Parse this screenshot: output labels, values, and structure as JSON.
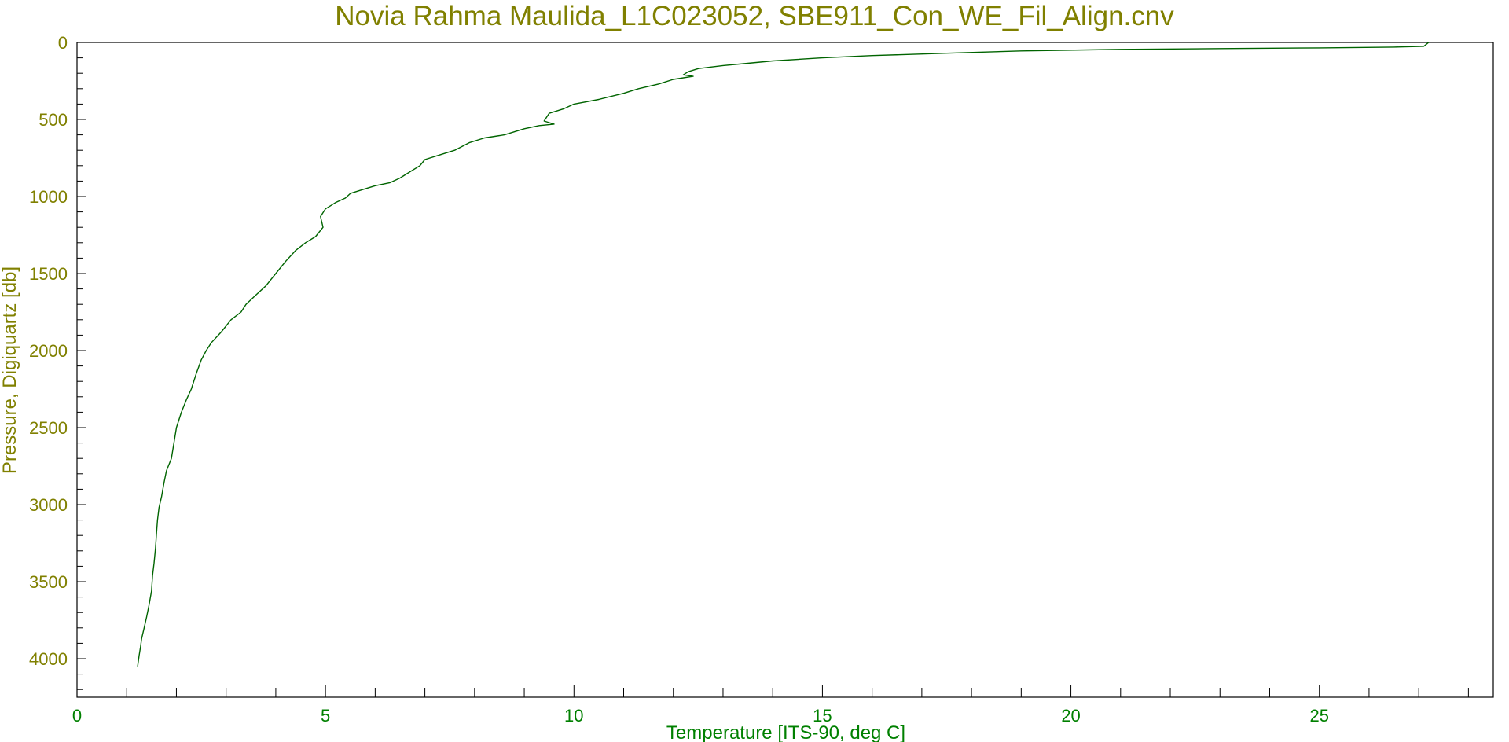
{
  "chart_data": {
    "type": "line",
    "title": "Novia Rahma Maulida_L1C023052, SBE911_Con_WE_Fil_Align.cnv",
    "xlabel": "Temperature [ITS-90, deg C]",
    "ylabel": "Pressure, Digiquartz [db]",
    "xlim": [
      0,
      28.5
    ],
    "ylim": [
      4250,
      0
    ],
    "y_inverted": true,
    "x_ticks": [
      0,
      5,
      10,
      15,
      20,
      25
    ],
    "x_tick_labels": [
      "0",
      "5",
      "10",
      "15",
      "20",
      "25"
    ],
    "y_ticks": [
      0,
      500,
      1000,
      1500,
      2000,
      2500,
      3000,
      3500,
      4000
    ],
    "y_tick_labels": [
      "0",
      "500",
      "1000",
      "1500",
      "2000",
      "2500",
      "3000",
      "3500",
      "4000"
    ],
    "grid": false,
    "colors": {
      "title": "#808000",
      "y_axis": "#808000",
      "x_axis": "#008000",
      "series": "#006400",
      "frame": "#000000"
    },
    "series": [
      {
        "x": [
          27.2,
          27.1,
          26.5,
          25.0,
          23.0,
          21.0,
          19.0,
          17.5,
          16.0,
          15.0,
          14.0,
          13.5,
          13.0,
          12.5,
          12.3,
          12.2,
          12.4,
          12.0,
          11.7,
          11.3,
          11.0,
          10.5,
          10.0,
          9.8,
          9.5,
          9.4,
          9.6,
          9.3,
          9.0,
          8.6,
          8.2,
          7.9,
          7.6,
          7.3,
          7.0,
          6.9,
          6.7,
          6.5,
          6.3,
          6.0,
          5.8,
          5.5,
          5.4,
          5.2,
          5.1,
          5.0,
          4.9,
          4.95,
          4.8,
          4.6,
          4.4,
          4.2,
          4.0,
          3.9,
          3.8,
          3.6,
          3.4,
          3.3,
          3.1,
          2.9,
          2.7,
          2.6,
          2.5,
          2.4,
          2.3,
          2.2,
          2.1,
          2.0,
          1.95,
          1.9,
          1.8,
          1.75,
          1.7,
          1.65,
          1.62,
          1.6,
          1.58,
          1.55,
          1.52,
          1.5,
          1.45,
          1.4,
          1.35,
          1.3,
          1.28,
          1.25,
          1.22
        ],
        "y": [
          0,
          25,
          30,
          35,
          40,
          45,
          55,
          70,
          85,
          100,
          120,
          135,
          150,
          170,
          190,
          210,
          220,
          240,
          270,
          300,
          330,
          370,
          400,
          430,
          460,
          510,
          530,
          540,
          560,
          600,
          620,
          650,
          700,
          730,
          760,
          800,
          840,
          880,
          910,
          930,
          950,
          980,
          1010,
          1040,
          1060,
          1080,
          1130,
          1200,
          1260,
          1300,
          1350,
          1420,
          1500,
          1540,
          1580,
          1640,
          1700,
          1750,
          1800,
          1880,
          1950,
          2000,
          2060,
          2150,
          2250,
          2320,
          2400,
          2500,
          2600,
          2700,
          2780,
          2860,
          2950,
          3020,
          3100,
          3180,
          3280,
          3380,
          3460,
          3560,
          3650,
          3730,
          3800,
          3870,
          3920,
          3980,
          4050
        ]
      }
    ]
  }
}
